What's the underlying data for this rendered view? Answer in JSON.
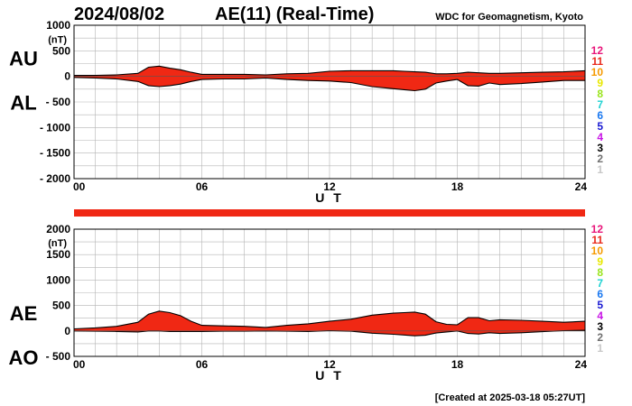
{
  "header": {
    "date": "2024/08/02",
    "title": "AE(11) (Real-Time)",
    "source": "WDC for Geomagnetism, Kyoto"
  },
  "footer": {
    "created": "[Created at 2025-03-18 05:27UT]"
  },
  "station_legend": {
    "labels": [
      "12",
      "11",
      "10",
      "9",
      "8",
      "7",
      "6",
      "5",
      "4",
      "3",
      "2",
      "1"
    ],
    "colors": [
      "#e8157a",
      "#e8281a",
      "#f59a00",
      "#e8e800",
      "#9ae41e",
      "#1ed2d2",
      "#1a78f0",
      "#1a1ad2",
      "#c814e6",
      "#000000",
      "#707070",
      "#c8c8c8"
    ]
  },
  "colors": {
    "fill": "#f02814",
    "line": "#000000",
    "grid": "#b4b4b4",
    "coverage_bar": "#f02814"
  },
  "chart_data": [
    {
      "type": "area",
      "id": "au-al",
      "ylabel_top": "AU",
      "ylabel_bottom": "AL",
      "y_unit": "(nT)",
      "xlabel": "U T",
      "xlim": [
        0,
        24
      ],
      "ylim": [
        -2000,
        1000
      ],
      "yticks": [
        1000,
        500,
        0,
        -500,
        -1000,
        -1500,
        -2000
      ],
      "ytick_labels": [
        "1000",
        "500",
        "0",
        "- 500",
        "- 1000",
        "- 1500",
        "- 2000"
      ],
      "xticks": [
        0,
        6,
        12,
        18,
        24
      ],
      "xtick_labels": [
        "00",
        "06",
        "12",
        "18",
        "24"
      ],
      "grid": true,
      "x": [
        0,
        1,
        2,
        3,
        3.5,
        4,
        4.5,
        5,
        5.5,
        6,
        7,
        8,
        9,
        10,
        11,
        12,
        13,
        14,
        15,
        15.5,
        16,
        16.5,
        17,
        17.5,
        18,
        18.5,
        19,
        19.5,
        20,
        21,
        22,
        23,
        24
      ],
      "series": [
        {
          "values": [
            20,
            20,
            30,
            60,
            180,
            200,
            160,
            130,
            80,
            40,
            40,
            40,
            30,
            50,
            60,
            100,
            110,
            110,
            110,
            100,
            90,
            80,
            50,
            50,
            60,
            80,
            70,
            60,
            60,
            70,
            80,
            90,
            110
          ]
        },
        {
          "values": [
            -20,
            -30,
            -50,
            -100,
            -180,
            -200,
            -180,
            -150,
            -100,
            -60,
            -50,
            -50,
            -30,
            -60,
            -80,
            -90,
            -120,
            -200,
            -240,
            -260,
            -280,
            -250,
            -130,
            -90,
            -60,
            -180,
            -190,
            -130,
            -160,
            -140,
            -110,
            -80,
            -80
          ]
        }
      ]
    },
    {
      "type": "area",
      "id": "ae-ao",
      "ylabel_top": "AE",
      "ylabel_bottom": "AO",
      "y_unit": "(nT)",
      "xlabel": "U T",
      "xlim": [
        0,
        24
      ],
      "ylim": [
        -500,
        2000
      ],
      "yticks": [
        2000,
        1500,
        1000,
        500,
        0,
        -500
      ],
      "ytick_labels": [
        "2000",
        "1500",
        "1000",
        "500",
        "0",
        "- 500"
      ],
      "xticks": [
        0,
        6,
        12,
        18,
        24
      ],
      "xtick_labels": [
        "00",
        "06",
        "12",
        "18",
        "24"
      ],
      "grid": true,
      "x": [
        0,
        1,
        2,
        3,
        3.5,
        4,
        4.5,
        5,
        5.5,
        6,
        7,
        8,
        9,
        10,
        11,
        12,
        13,
        14,
        15,
        15.5,
        16,
        16.5,
        17,
        17.5,
        18,
        18.5,
        19,
        19.5,
        20,
        21,
        22,
        23,
        24
      ],
      "series": [
        {
          "values": [
            40,
            60,
            90,
            170,
            330,
            390,
            360,
            300,
            190,
            110,
            100,
            90,
            70,
            110,
            140,
            190,
            230,
            310,
            350,
            360,
            370,
            330,
            180,
            130,
            120,
            260,
            260,
            200,
            220,
            210,
            190,
            170,
            190
          ]
        },
        {
          "values": [
            0,
            -5,
            -10,
            -20,
            0,
            0,
            -10,
            -10,
            -10,
            -10,
            -5,
            -5,
            0,
            -5,
            -10,
            5,
            -5,
            -45,
            -65,
            -80,
            -95,
            -85,
            -40,
            -20,
            0,
            -50,
            -60,
            -35,
            -50,
            -35,
            -15,
            5,
            15
          ]
        }
      ]
    }
  ]
}
